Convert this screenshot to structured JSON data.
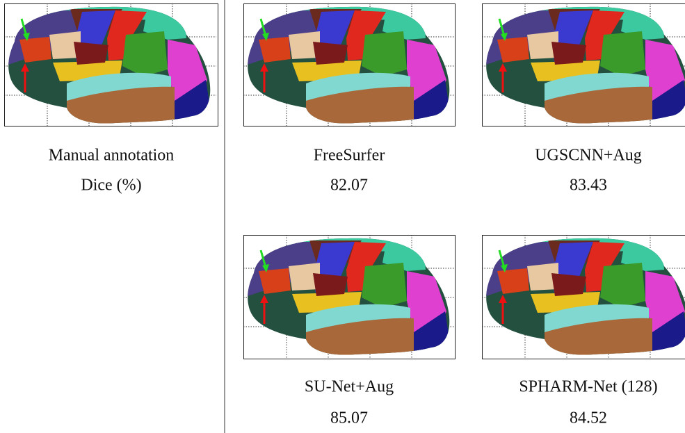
{
  "reference": {
    "label": "Manual annotation",
    "caption": "Dice (%)"
  },
  "methods": [
    {
      "label": "FreeSurfer",
      "dice": 82.07
    },
    {
      "label": "UGSCNN+Aug",
      "dice": 83.43
    },
    {
      "label": "SU-Net+Aug",
      "dice": 85.07
    },
    {
      "label": "SPHARM-Net (128)",
      "dice": 84.52
    }
  ]
}
